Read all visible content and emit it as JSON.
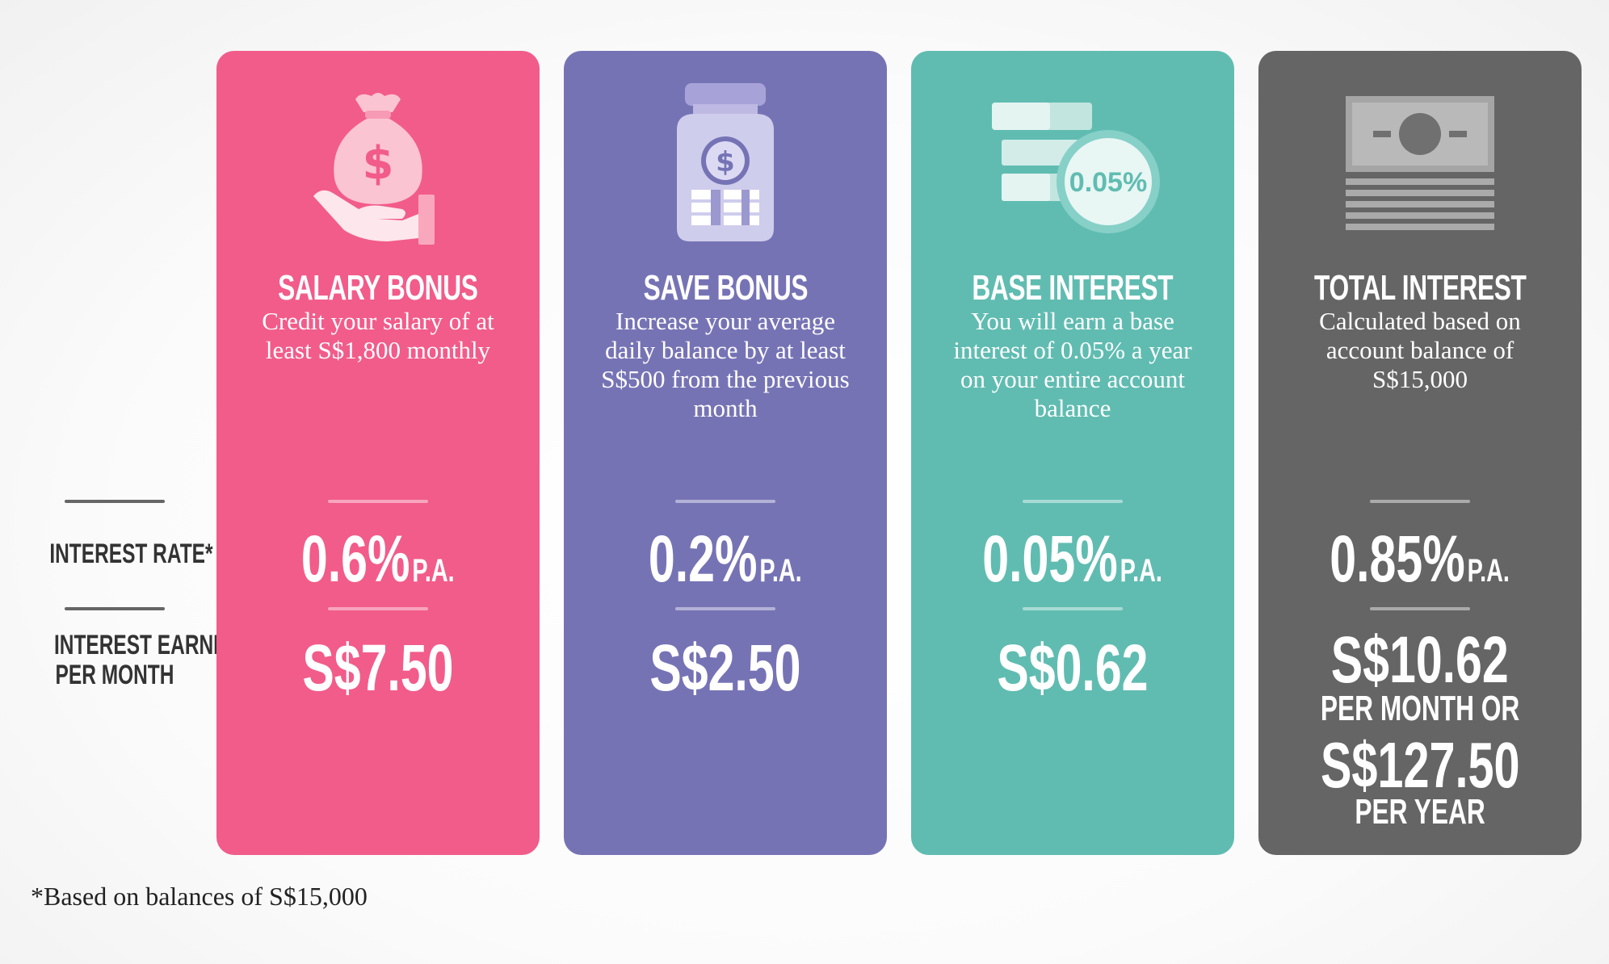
{
  "colors": {
    "salary": "#f25c8a",
    "save": "#7673b5",
    "base": "#60bcb1",
    "total": "#656565",
    "label_text": "#333333"
  },
  "row_labels": {
    "interest_rate": "INTEREST RATE*",
    "earned_line1": "INTEREST EARNED",
    "earned_line2": "PER MONTH"
  },
  "cards": [
    {
      "title": "SALARY BONUS",
      "description": "Credit your salary of at least S$1,800 monthly",
      "rate": "0.6%",
      "rate_unit": "P.A.",
      "earned": "S$7.50",
      "icon": "money-bag-hand-icon"
    },
    {
      "title": "SAVE BONUS",
      "description": "Increase your average daily balance by at least S$500 from the previous month",
      "rate": "0.2%",
      "rate_unit": "P.A.",
      "earned": "S$2.50",
      "icon": "savings-jar-icon"
    },
    {
      "title": "BASE INTEREST",
      "description": "You will earn a base interest of 0.05% a year on your entire account balance",
      "rate": "0.05%",
      "rate_unit": "P.A.",
      "earned": "S$0.62",
      "icon": "cash-stack-badge-icon",
      "badge": "0.05%"
    },
    {
      "title": "TOTAL INTEREST",
      "description": "Calculated based on account balance of S$15,000",
      "rate": "0.85%",
      "rate_unit": "P.A.",
      "earned": "S$10.62",
      "earned_line2": "PER MONTH OR",
      "earned_yearly": "S$127.50",
      "earned_line4": "PER YEAR",
      "icon": "banknote-stack-icon"
    }
  ],
  "footnote": "*Based on balances of S$15,000"
}
